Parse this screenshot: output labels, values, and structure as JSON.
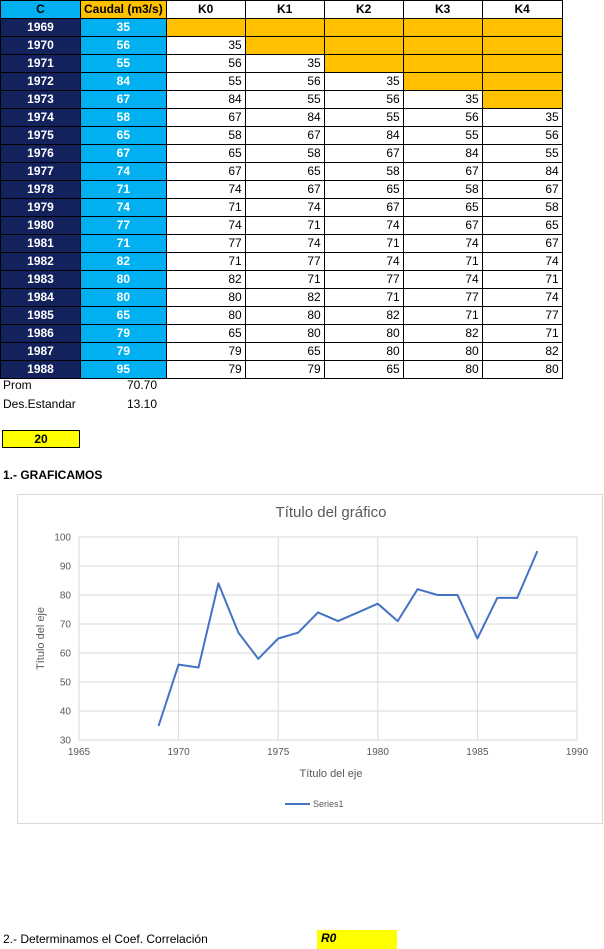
{
  "table": {
    "headers": [
      "C",
      "Caudal (m3/s)",
      "K0",
      "K1",
      "K2",
      "K3",
      "K4"
    ],
    "rows": [
      {
        "year": "1969",
        "flow": "35",
        "k": [
          "",
          "",
          "",
          "",
          ""
        ]
      },
      {
        "year": "1970",
        "flow": "56",
        "k": [
          "35",
          "",
          "",
          "",
          ""
        ]
      },
      {
        "year": "1971",
        "flow": "55",
        "k": [
          "56",
          "35",
          "",
          "",
          ""
        ]
      },
      {
        "year": "1972",
        "flow": "84",
        "k": [
          "55",
          "56",
          "35",
          "",
          ""
        ]
      },
      {
        "year": "1973",
        "flow": "67",
        "k": [
          "84",
          "55",
          "56",
          "35",
          ""
        ]
      },
      {
        "year": "1974",
        "flow": "58",
        "k": [
          "67",
          "84",
          "55",
          "56",
          "35"
        ]
      },
      {
        "year": "1975",
        "flow": "65",
        "k": [
          "58",
          "67",
          "84",
          "55",
          "56"
        ]
      },
      {
        "year": "1976",
        "flow": "67",
        "k": [
          "65",
          "58",
          "67",
          "84",
          "55"
        ]
      },
      {
        "year": "1977",
        "flow": "74",
        "k": [
          "67",
          "65",
          "58",
          "67",
          "84"
        ]
      },
      {
        "year": "1978",
        "flow": "71",
        "k": [
          "74",
          "67",
          "65",
          "58",
          "67"
        ]
      },
      {
        "year": "1979",
        "flow": "74",
        "k": [
          "71",
          "74",
          "67",
          "65",
          "58"
        ]
      },
      {
        "year": "1980",
        "flow": "77",
        "k": [
          "74",
          "71",
          "74",
          "67",
          "65"
        ]
      },
      {
        "year": "1981",
        "flow": "71",
        "k": [
          "77",
          "74",
          "71",
          "74",
          "67"
        ]
      },
      {
        "year": "1982",
        "flow": "82",
        "k": [
          "71",
          "77",
          "74",
          "71",
          "74"
        ]
      },
      {
        "year": "1983",
        "flow": "80",
        "k": [
          "82",
          "71",
          "77",
          "74",
          "71"
        ]
      },
      {
        "year": "1984",
        "flow": "80",
        "k": [
          "80",
          "82",
          "71",
          "77",
          "74"
        ]
      },
      {
        "year": "1985",
        "flow": "65",
        "k": [
          "80",
          "80",
          "82",
          "71",
          "77"
        ]
      },
      {
        "year": "1986",
        "flow": "79",
        "k": [
          "65",
          "80",
          "80",
          "82",
          "71"
        ]
      },
      {
        "year": "1987",
        "flow": "79",
        "k": [
          "79",
          "65",
          "80",
          "80",
          "82"
        ]
      },
      {
        "year": "1988",
        "flow": "95",
        "k": [
          "79",
          "79",
          "65",
          "80",
          "80"
        ]
      }
    ]
  },
  "stats": {
    "prom_label": "Prom",
    "prom_value": "70.70",
    "std_label": "Des.Estandar",
    "std_value": "13.10"
  },
  "count_box": "20",
  "section1_title": "1.- GRAFICAMOS",
  "section2_title": "2.- Determinamos el Coef. Correlación",
  "r0_label": "R0",
  "colors": {
    "year_bg": "#13215c",
    "flow_bg": "#00b0f0",
    "empty_bg": "#ffc000",
    "highlight": "#ffff00",
    "series_line": "#4472c4"
  },
  "chart_data": {
    "type": "line",
    "title": "Título del gráfico",
    "xlabel": "Título del eje",
    "ylabel": "Título del eje",
    "xlim": [
      1965,
      1990
    ],
    "ylim": [
      30,
      100
    ],
    "xticks": [
      1965,
      1970,
      1975,
      1980,
      1985,
      1990
    ],
    "yticks": [
      30,
      40,
      50,
      60,
      70,
      80,
      90,
      100
    ],
    "grid": "vertical and horizontal major gridlines",
    "legend": "bottom",
    "series": [
      {
        "name": "Series1",
        "x": [
          1969,
          1970,
          1971,
          1972,
          1973,
          1974,
          1975,
          1976,
          1977,
          1978,
          1979,
          1980,
          1981,
          1982,
          1983,
          1984,
          1985,
          1986,
          1987,
          1988
        ],
        "values": [
          35,
          56,
          55,
          84,
          67,
          58,
          65,
          67,
          74,
          71,
          74,
          77,
          71,
          82,
          80,
          80,
          65,
          79,
          79,
          95
        ]
      }
    ]
  }
}
